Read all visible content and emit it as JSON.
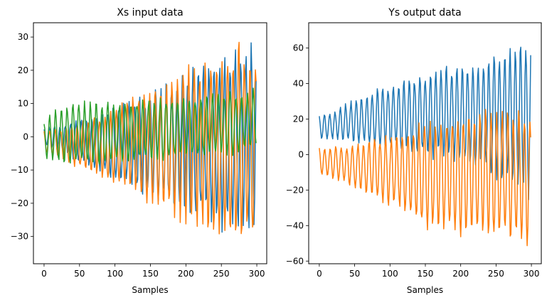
{
  "chart_data": [
    {
      "type": "line",
      "title": "Xs input data",
      "xlabel": "Samples",
      "ylabel": "",
      "xlim": [
        -15,
        314
      ],
      "ylim": [
        -38.2,
        34.3
      ],
      "xticks": [
        0,
        50,
        100,
        150,
        200,
        250,
        300
      ],
      "yticks": [
        -30,
        -20,
        -10,
        0,
        10,
        20,
        30
      ],
      "grid": false,
      "series": [
        {
          "color": "#1f77b4",
          "description": "oscillating signal, period ~7.5 samples, amplitude growing from ~3 to ~30",
          "x": [
            0,
            25,
            50,
            75,
            100,
            125,
            150,
            175,
            200,
            225,
            250,
            275,
            299
          ],
          "upper_envelope": [
            3,
            4,
            6,
            8,
            10,
            12,
            14,
            17,
            20,
            23,
            26,
            29,
            30.5
          ],
          "lower_envelope": [
            -3,
            -5,
            -8,
            -11,
            -14,
            -17,
            -20,
            -22,
            -24,
            -26,
            -29,
            -30,
            -31
          ]
        },
        {
          "color": "#ff7f0e",
          "description": "oscillating signal, period ~7.5 samples, amplitude growing, peaks up to ~31 and troughs down to ~-35",
          "x": [
            0,
            25,
            50,
            75,
            100,
            125,
            150,
            175,
            200,
            225,
            250,
            275,
            299
          ],
          "upper_envelope": [
            2,
            3,
            5,
            7,
            10,
            13,
            15,
            18,
            24,
            24,
            25,
            31,
            27
          ],
          "lower_envelope": [
            -5,
            -7,
            -10,
            -12,
            -15,
            -17,
            -21,
            -24,
            -27,
            -29,
            -31,
            -33,
            -35
          ]
        },
        {
          "color": "#2ca02c",
          "description": "oscillating signal, amplitude ~10-15, slight upward drift",
          "x": [
            0,
            25,
            50,
            75,
            100,
            125,
            150,
            175,
            200,
            225,
            250,
            275,
            299
          ],
          "upper_envelope": [
            5,
            10,
            11,
            11,
            11,
            11,
            12,
            12,
            13,
            13,
            14,
            14,
            15
          ],
          "lower_envelope": [
            -7,
            -9,
            -9,
            -9,
            -9,
            -8,
            -8,
            -7,
            -7,
            -7,
            -6,
            -6,
            -4
          ]
        }
      ]
    },
    {
      "type": "line",
      "title": "Ys output data",
      "xlabel": "Samples",
      "ylabel": "",
      "xlim": [
        -15,
        314
      ],
      "ylim": [
        -61.5,
        74.2
      ],
      "xticks": [
        0,
        50,
        100,
        150,
        200,
        250,
        300
      ],
      "yticks": [
        -60,
        -40,
        -20,
        0,
        20,
        40,
        60
      ],
      "grid": false,
      "series": [
        {
          "color": "#1f77b4",
          "description": "oscillating signal centered ~15-20, amplitude growing, peaks up to ~67",
          "x": [
            0,
            25,
            50,
            75,
            100,
            125,
            150,
            175,
            200,
            225,
            250,
            275,
            299
          ],
          "upper_envelope": [
            22,
            26,
            32,
            36,
            42,
            44,
            48,
            52,
            53,
            56,
            60,
            66,
            68
          ],
          "lower_envelope": [
            8,
            8,
            6,
            4,
            2,
            0,
            -2,
            -4,
            -8,
            -12,
            -15,
            -20,
            -27
          ]
        },
        {
          "color": "#ff7f0e",
          "description": "oscillating signal centered ~-10, amplitude growing, troughs down to ~-55",
          "x": [
            0,
            25,
            50,
            75,
            100,
            125,
            150,
            175,
            200,
            225,
            250,
            275,
            299
          ],
          "upper_envelope": [
            5,
            5,
            7,
            10,
            12,
            14,
            20,
            22,
            25,
            28,
            28,
            28,
            28
          ],
          "lower_envelope": [
            -12,
            -15,
            -20,
            -25,
            -30,
            -35,
            -45,
            -45,
            -47,
            -49,
            -50,
            -52,
            -55
          ]
        }
      ]
    }
  ]
}
